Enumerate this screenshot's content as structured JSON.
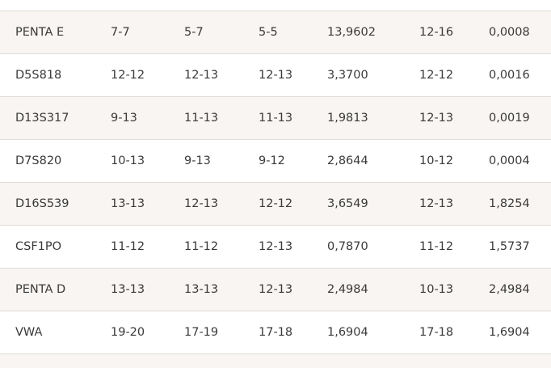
{
  "rows": [
    [
      "PENTA E",
      "7-7",
      "5-7",
      "5-5",
      "13,9602",
      "12-16",
      "0,0008"
    ],
    [
      "D5S818",
      "12-12",
      "12-13",
      "12-13",
      "3,3700",
      "12-12",
      "0,0016"
    ],
    [
      "D13S317",
      "9-13",
      "11-13",
      "11-13",
      "1,9813",
      "12-13",
      "0,0019"
    ],
    [
      "D7S820",
      "10-13",
      "9-13",
      "9-12",
      "2,8644",
      "10-12",
      "0,0004"
    ],
    [
      "D16S539",
      "13-13",
      "12-13",
      "12-12",
      "3,6549",
      "12-13",
      "1,8254"
    ],
    [
      "CSF1PO",
      "11-12",
      "11-12",
      "12-13",
      "0,7870",
      "11-12",
      "1,5737"
    ],
    [
      "PENTA D",
      "13-13",
      "13-13",
      "12-13",
      "2,4984",
      "10-13",
      "2,4984"
    ],
    [
      "VWA",
      "19-20",
      "17-19",
      "17-18",
      "1,6904",
      "17-18",
      "1,6904"
    ]
  ],
  "colors": {
    "row_shade": "#f8f5f2",
    "divider": "#e0dcd6",
    "text": "#3a3a3a"
  }
}
